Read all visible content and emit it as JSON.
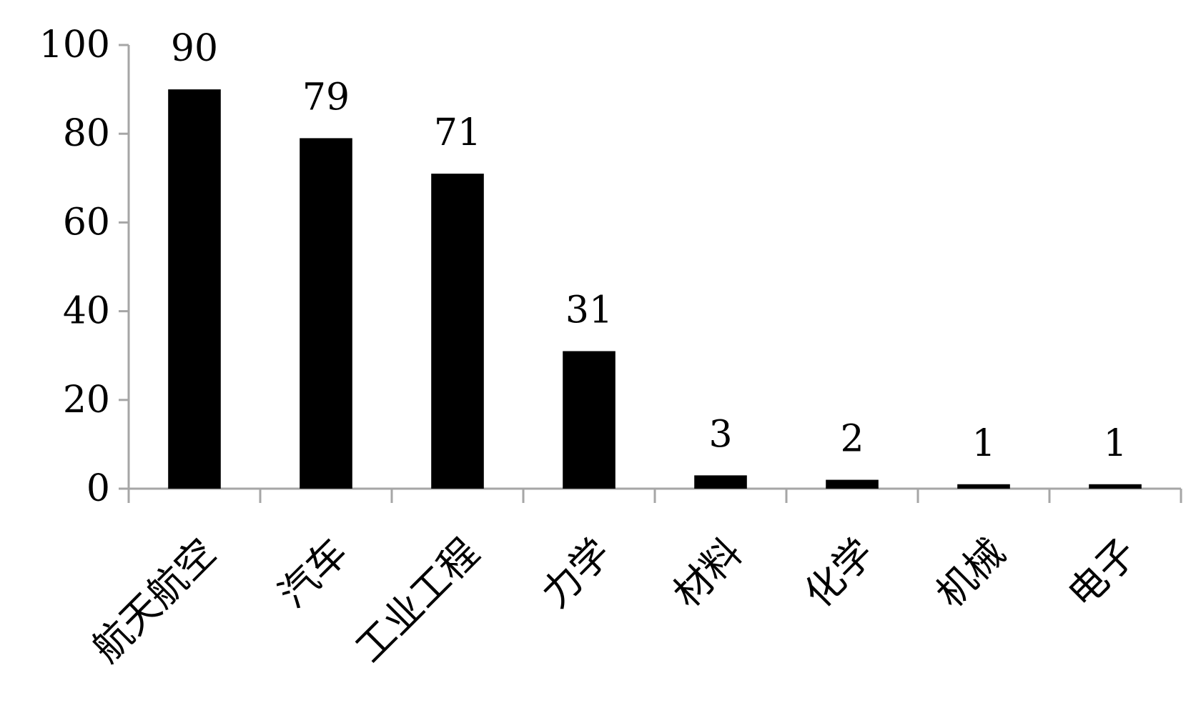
{
  "chart_data": {
    "type": "bar",
    "title": "",
    "xlabel": "",
    "ylabel": "",
    "categories": [
      "航天航空",
      "汽车",
      "工业工程",
      "力学",
      "材料",
      "化学",
      "机械",
      "电子"
    ],
    "values": [
      90,
      79,
      71,
      31,
      3,
      2,
      1,
      1
    ],
    "data_labels": [
      "90",
      "79",
      "71",
      "31",
      "3",
      "2",
      "1",
      "1"
    ],
    "ylim": [
      0,
      100
    ],
    "yticks": [
      0,
      20,
      40,
      60,
      80,
      100
    ],
    "ytick_labels": [
      "0",
      "20",
      "40",
      "60",
      "80",
      "100"
    ],
    "grid": false,
    "legend": "none",
    "category_label_rotation_deg": -45,
    "bar_color": "#000000",
    "axis_color": "#a6a6a6"
  }
}
